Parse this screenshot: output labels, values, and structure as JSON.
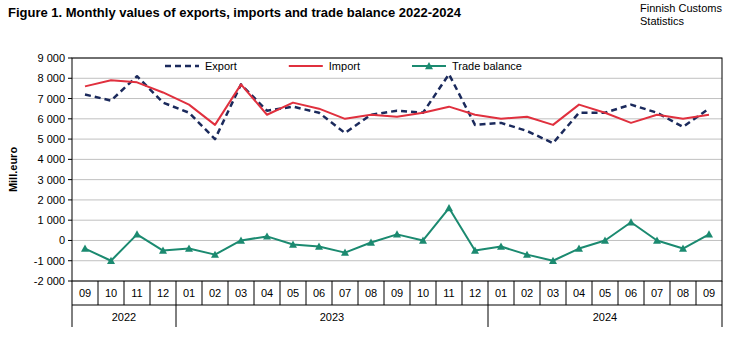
{
  "chart_data": {
    "type": "line",
    "title": "Figure 1. Monthly values of exports, imports and trade balance 2022-2024",
    "annotations": [
      "Finnish Customs",
      "Statistics"
    ],
    "y_label": "Mill.euro",
    "categories": [
      "09",
      "10",
      "11",
      "12",
      "01",
      "02",
      "03",
      "04",
      "05",
      "06",
      "07",
      "08",
      "09",
      "10",
      "11",
      "12",
      "01",
      "02",
      "03",
      "04",
      "05",
      "06",
      "07",
      "08",
      "09"
    ],
    "groups": [
      {
        "label": "2022",
        "count": 4
      },
      {
        "label": "2023",
        "count": 12
      },
      {
        "label": "2024",
        "count": 9
      }
    ],
    "series": [
      {
        "name": "Export",
        "color": "#1b2a5c",
        "line_style": "dashed",
        "marker": "none",
        "values": [
          7200,
          6900,
          8100,
          6800,
          6300,
          5000,
          7700,
          6400,
          6600,
          6300,
          5300,
          6200,
          6400,
          6300,
          8200,
          5700,
          5800,
          5400,
          4800,
          6300,
          6300,
          6700,
          6300,
          5600,
          6500
        ]
      },
      {
        "name": "Import",
        "color": "#e0303e",
        "line_style": "solid",
        "marker": "none",
        "values": [
          7600,
          7900,
          7800,
          7300,
          6700,
          5700,
          7700,
          6200,
          6800,
          6500,
          6000,
          6200,
          6100,
          6300,
          6600,
          6200,
          6000,
          6100,
          5700,
          6700,
          6300,
          5800,
          6200,
          6000,
          6200
        ]
      },
      {
        "name": "Trade balance",
        "color": "#1b8a70",
        "line_style": "solid",
        "marker": "triangle",
        "values": [
          -400,
          -1000,
          300,
          -500,
          -400,
          -700,
          0,
          200,
          -200,
          -300,
          -600,
          -100,
          300,
          0,
          1600,
          -500,
          -300,
          -700,
          -1000,
          -400,
          0,
          900,
          0,
          -400,
          300
        ]
      }
    ],
    "ylim": [
      -2000,
      9000
    ],
    "yticks": [
      {
        "value": -2000,
        "label": "-2 000"
      },
      {
        "value": -1000,
        "label": "-1 000"
      },
      0,
      {
        "value": 1000,
        "label": "1 000"
      },
      {
        "value": 2000,
        "label": "2 000"
      },
      {
        "value": 3000,
        "label": "3 000"
      },
      {
        "value": 4000,
        "label": "4 000"
      },
      {
        "value": 5000,
        "label": "5 000"
      },
      {
        "value": 6000,
        "label": "6 000"
      },
      {
        "value": 7000,
        "label": "7 000"
      },
      {
        "value": 8000,
        "label": "8 000"
      },
      {
        "value": 9000,
        "label": "9 000"
      }
    ],
    "grid": true,
    "legend": "top"
  }
}
